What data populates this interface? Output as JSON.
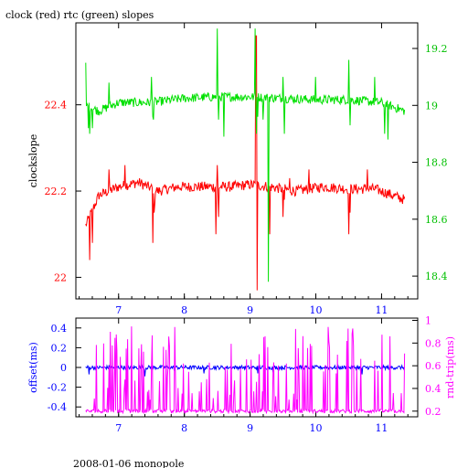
{
  "chart_data": [
    {
      "type": "line",
      "title": "clock (red) rtc (green) slopes",
      "xlabel": "",
      "ylabel": "clockslope",
      "xlim": [
        6.35,
        11.55
      ],
      "x_ticks": [
        7,
        8,
        9,
        10,
        11
      ],
      "ylim_left": [
        21.95,
        22.59
      ],
      "y_ticks_left": [
        22,
        22.2,
        22.4
      ],
      "ylim_right": [
        18.32,
        19.29
      ],
      "y_ticks_right": [
        18.4,
        18.6,
        18.8,
        19,
        19.2
      ],
      "grid": false,
      "series": [
        {
          "name": "clock (red)",
          "axis": "left",
          "color": "#ff0000",
          "baseline": [
            [
              6.5,
              22.12
            ],
            [
              6.7,
              22.19
            ],
            [
              7.0,
              22.21
            ],
            [
              7.3,
              22.22
            ],
            [
              7.6,
              22.2
            ],
            [
              7.9,
              22.21
            ],
            [
              8.3,
              22.21
            ],
            [
              8.7,
              22.21
            ],
            [
              9.0,
              22.215
            ],
            [
              9.3,
              22.21
            ],
            [
              9.7,
              22.2
            ],
            [
              10.1,
              22.21
            ],
            [
              10.5,
              22.205
            ],
            [
              10.9,
              22.205
            ],
            [
              11.35,
              22.18
            ]
          ],
          "noise": 0.012,
          "spikes": [
            [
              6.56,
              22.04
            ],
            [
              6.6,
              22.08
            ],
            [
              6.85,
              22.25
            ],
            [
              7.1,
              22.26
            ],
            [
              7.52,
              22.08
            ],
            [
              7.54,
              22.15
            ],
            [
              7.55,
              22.17
            ],
            [
              8.48,
              22.1
            ],
            [
              8.5,
              22.26
            ],
            [
              8.52,
              22.14
            ],
            [
              9.09,
              22.56
            ],
            [
              9.1,
              22.56
            ],
            [
              9.11,
              21.97
            ],
            [
              9.3,
              22.1
            ],
            [
              9.5,
              22.14
            ],
            [
              9.52,
              22.18
            ],
            [
              9.6,
              22.23
            ],
            [
              9.9,
              22.25
            ],
            [
              10.5,
              22.1
            ],
            [
              10.52,
              22.15
            ],
            [
              10.78,
              22.25
            ]
          ]
        },
        {
          "name": "rtc (green)",
          "axis": "right",
          "color": "#00e000",
          "baseline": [
            [
              6.5,
              19.0
            ],
            [
              6.7,
              18.98
            ],
            [
              7.0,
              19.01
            ],
            [
              7.5,
              19.01
            ],
            [
              8.0,
              19.025
            ],
            [
              8.5,
              19.03
            ],
            [
              9.0,
              19.03
            ],
            [
              9.5,
              19.025
            ],
            [
              10.0,
              19.02
            ],
            [
              10.5,
              19.02
            ],
            [
              11.0,
              19.01
            ],
            [
              11.35,
              18.98
            ]
          ],
          "noise": 0.016,
          "spikes": [
            [
              6.5,
              19.15
            ],
            [
              6.54,
              18.92
            ],
            [
              6.56,
              18.9
            ],
            [
              6.6,
              18.92
            ],
            [
              6.85,
              19.08
            ],
            [
              7.5,
              19.1
            ],
            [
              7.52,
              18.96
            ],
            [
              7.53,
              18.95
            ],
            [
              8.5,
              19.27
            ],
            [
              8.52,
              18.95
            ],
            [
              8.6,
              18.89
            ],
            [
              9.08,
              19.27
            ],
            [
              9.1,
              18.9
            ],
            [
              9.12,
              18.96
            ],
            [
              9.2,
              18.95
            ],
            [
              9.28,
              18.38
            ],
            [
              9.5,
              19.1
            ],
            [
              9.52,
              18.9
            ],
            [
              10.0,
              19.1
            ],
            [
              10.5,
              19.16
            ],
            [
              10.52,
              18.93
            ],
            [
              10.9,
              19.1
            ],
            [
              11.05,
              18.9
            ],
            [
              11.1,
              18.88
            ]
          ]
        }
      ]
    },
    {
      "type": "line",
      "title": "",
      "xlabel": "",
      "ylabel": "offset(ms)",
      "y2label": "rnd-trip(ms)",
      "xlim": [
        6.35,
        11.55
      ],
      "x_ticks": [
        7,
        8,
        9,
        10,
        11
      ],
      "ylim_left": [
        -0.5,
        0.5
      ],
      "y_ticks_left": [
        -0.4,
        -0.2,
        0,
        0.2,
        0.4
      ],
      "ylim_right": [
        0.15,
        1.02
      ],
      "y_ticks_right": [
        0.2,
        0.4,
        0.6,
        0.8,
        1
      ],
      "grid": false,
      "series": [
        {
          "name": "offset(ms)",
          "axis": "left",
          "color": "#0000ff",
          "baseline": [
            [
              6.5,
              0
            ],
            [
              11.35,
              0
            ]
          ],
          "noise": 0.02,
          "spikes": [
            [
              6.55,
              -0.07
            ],
            [
              7.4,
              -0.09
            ],
            [
              8.3,
              -0.06
            ],
            [
              9.12,
              -0.06
            ],
            [
              9.35,
              -0.05
            ],
            [
              10.68,
              -0.06
            ],
            [
              10.7,
              -0.07
            ]
          ]
        },
        {
          "name": "rnd-trip(ms)",
          "axis": "right",
          "color": "#ff00ff",
          "baseline": [
            [
              6.5,
              0.2
            ],
            [
              11.35,
              0.2
            ]
          ],
          "noise": 0.015,
          "spike_density": 0.22,
          "spike_range": [
            0.3,
            0.95
          ]
        }
      ]
    }
  ],
  "footer": "2008-01-06 monopole"
}
